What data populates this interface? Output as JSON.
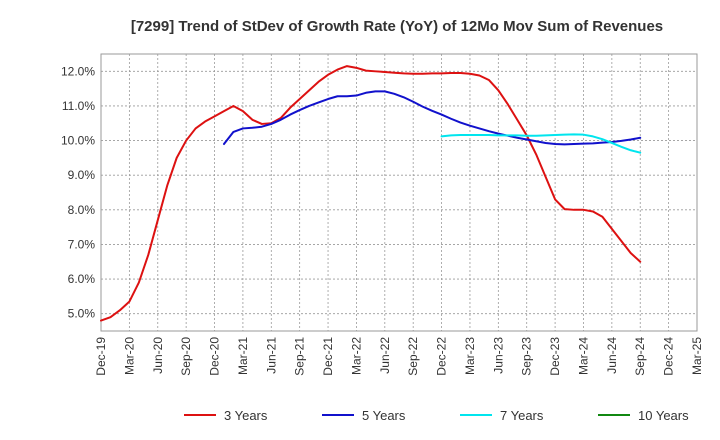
{
  "chart_data": {
    "type": "line",
    "title": "[7299]  Trend of StDev of Growth Rate (YoY) of 12Mo Mov Sum of Revenues",
    "xlabel": "",
    "ylabel": "",
    "ylim": [
      4.5,
      12.5
    ],
    "y_ticks": [
      "5.0%",
      "6.0%",
      "7.0%",
      "8.0%",
      "9.0%",
      "10.0%",
      "11.0%",
      "12.0%"
    ],
    "x_ticks": [
      "Dec-19",
      "Mar-20",
      "Jun-20",
      "Sep-20",
      "Dec-20",
      "Mar-21",
      "Jun-21",
      "Sep-21",
      "Dec-21",
      "Mar-22",
      "Jun-22",
      "Sep-22",
      "Dec-22",
      "Mar-23",
      "Jun-23",
      "Sep-23",
      "Dec-23",
      "Mar-24",
      "Jun-24",
      "Sep-24",
      "Dec-24",
      "Mar-25"
    ],
    "grid": true,
    "legend_position": "bottom",
    "series": [
      {
        "name": "3 Years",
        "color": "#dd1111",
        "points": [
          [
            0,
            4.8
          ],
          [
            1,
            4.9
          ],
          [
            2,
            5.1
          ],
          [
            3,
            5.35
          ],
          [
            4,
            5.9
          ],
          [
            5,
            6.7
          ],
          [
            6,
            7.7
          ],
          [
            7,
            8.7
          ],
          [
            8,
            9.5
          ],
          [
            9,
            10.0
          ],
          [
            10,
            10.35
          ],
          [
            11,
            10.55
          ],
          [
            12,
            10.7
          ],
          [
            13,
            10.85
          ],
          [
            14,
            11.0
          ],
          [
            15,
            10.85
          ],
          [
            16,
            10.6
          ],
          [
            17,
            10.48
          ],
          [
            18,
            10.5
          ],
          [
            19,
            10.65
          ],
          [
            20,
            10.95
          ],
          [
            21,
            11.2
          ],
          [
            22,
            11.45
          ],
          [
            23,
            11.7
          ],
          [
            24,
            11.9
          ],
          [
            25,
            12.05
          ],
          [
            26,
            12.15
          ],
          [
            27,
            12.1
          ],
          [
            28,
            12.02
          ],
          [
            29,
            12.0
          ],
          [
            30,
            11.98
          ],
          [
            31,
            11.96
          ],
          [
            32,
            11.94
          ],
          [
            33,
            11.93
          ],
          [
            34,
            11.93
          ],
          [
            35,
            11.94
          ],
          [
            36,
            11.94
          ],
          [
            37,
            11.95
          ],
          [
            38,
            11.95
          ],
          [
            39,
            11.93
          ],
          [
            40,
            11.88
          ],
          [
            41,
            11.75
          ],
          [
            42,
            11.45
          ],
          [
            43,
            11.05
          ],
          [
            44,
            10.6
          ],
          [
            45,
            10.15
          ],
          [
            46,
            9.6
          ],
          [
            47,
            8.95
          ],
          [
            48,
            8.3
          ],
          [
            49,
            8.02
          ],
          [
            50,
            8.0
          ],
          [
            51,
            8.0
          ],
          [
            52,
            7.95
          ],
          [
            53,
            7.8
          ],
          [
            54,
            7.45
          ],
          [
            55,
            7.1
          ],
          [
            56,
            6.75
          ],
          [
            57,
            6.5
          ]
        ]
      },
      {
        "name": "5 Years",
        "color": "#1111cc",
        "points": [
          [
            13,
            9.9
          ],
          [
            14,
            10.25
          ],
          [
            15,
            10.35
          ],
          [
            16,
            10.37
          ],
          [
            17,
            10.4
          ],
          [
            18,
            10.48
          ],
          [
            19,
            10.6
          ],
          [
            20,
            10.75
          ],
          [
            21,
            10.88
          ],
          [
            22,
            11.0
          ],
          [
            23,
            11.1
          ],
          [
            24,
            11.2
          ],
          [
            25,
            11.28
          ],
          [
            26,
            11.28
          ],
          [
            27,
            11.3
          ],
          [
            28,
            11.38
          ],
          [
            29,
            11.42
          ],
          [
            30,
            11.42
          ],
          [
            31,
            11.35
          ],
          [
            32,
            11.25
          ],
          [
            33,
            11.12
          ],
          [
            34,
            10.98
          ],
          [
            35,
            10.86
          ],
          [
            36,
            10.75
          ],
          [
            37,
            10.63
          ],
          [
            38,
            10.52
          ],
          [
            39,
            10.43
          ],
          [
            40,
            10.35
          ],
          [
            41,
            10.27
          ],
          [
            42,
            10.2
          ],
          [
            43,
            10.14
          ],
          [
            44,
            10.08
          ],
          [
            45,
            10.03
          ],
          [
            46,
            9.98
          ],
          [
            47,
            9.93
          ],
          [
            48,
            9.9
          ],
          [
            49,
            9.89
          ],
          [
            50,
            9.9
          ],
          [
            51,
            9.91
          ],
          [
            52,
            9.92
          ],
          [
            53,
            9.94
          ],
          [
            54,
            9.96
          ],
          [
            55,
            9.99
          ],
          [
            56,
            10.03
          ],
          [
            57,
            10.08
          ]
        ]
      },
      {
        "name": "7 Years",
        "color": "#00e5ee",
        "points": [
          [
            36,
            10.12
          ],
          [
            37,
            10.15
          ],
          [
            38,
            10.16
          ],
          [
            39,
            10.16
          ],
          [
            40,
            10.16
          ],
          [
            41,
            10.16
          ],
          [
            42,
            10.15
          ],
          [
            43,
            10.15
          ],
          [
            44,
            10.15
          ],
          [
            45,
            10.14
          ],
          [
            46,
            10.14
          ],
          [
            47,
            10.15
          ],
          [
            48,
            10.16
          ],
          [
            49,
            10.17
          ],
          [
            50,
            10.18
          ],
          [
            51,
            10.17
          ],
          [
            52,
            10.12
          ],
          [
            53,
            10.04
          ],
          [
            54,
            9.93
          ],
          [
            55,
            9.82
          ],
          [
            56,
            9.72
          ],
          [
            57,
            9.65
          ]
        ]
      },
      {
        "name": "10 Years",
        "color": "#118811",
        "points": []
      }
    ]
  }
}
